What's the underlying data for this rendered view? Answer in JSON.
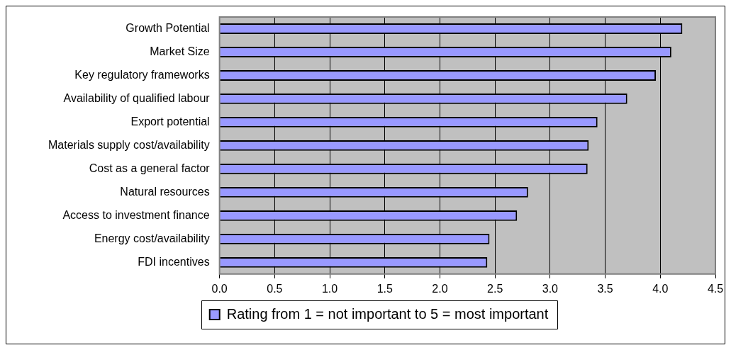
{
  "chart_data": {
    "type": "bar",
    "orientation": "horizontal",
    "categories": [
      "Growth Potential",
      "Market Size",
      "Key regulatory frameworks",
      "Availability of qualified labour",
      "Export potential",
      "Materials supply cost/availability",
      "Cost as a general factor",
      "Natural resources",
      "Access to investment finance",
      "Energy cost/availability",
      "FDI incentives"
    ],
    "series": [
      {
        "name": "Rating from 1 = not important to 5 = most important",
        "color": "#9999ff",
        "values": [
          4.2,
          4.1,
          3.96,
          3.7,
          3.43,
          3.35,
          3.34,
          2.8,
          2.7,
          2.45,
          2.43
        ]
      }
    ],
    "xlim": [
      0,
      4.5
    ],
    "xticks": [
      {
        "value": 0,
        "label": "0.0"
      },
      0.5,
      {
        "value": 1,
        "label": "1.0"
      },
      1.5,
      {
        "value": 2,
        "label": "2.0"
      },
      2.5,
      {
        "value": 3,
        "label": "3.0"
      },
      3.5,
      {
        "value": 4,
        "label": "4.0"
      },
      4.5
    ],
    "grid": "x",
    "legend": "bottom"
  }
}
